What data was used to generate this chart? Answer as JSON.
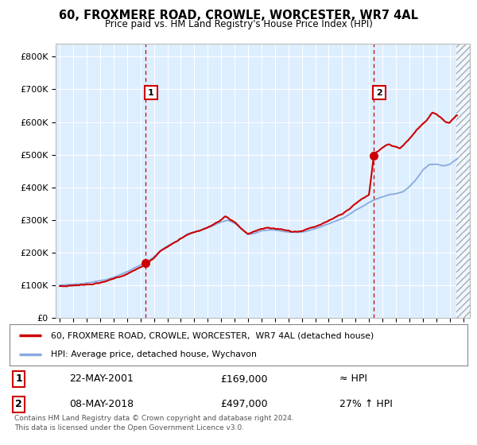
{
  "title": "60, FROXMERE ROAD, CROWLE, WORCESTER, WR7 4AL",
  "subtitle": "Price paid vs. HM Land Registry's House Price Index (HPI)",
  "ylabel_ticks": [
    "£0",
    "£100K",
    "£200K",
    "£300K",
    "£400K",
    "£500K",
    "£600K",
    "£700K",
    "£800K"
  ],
  "ytick_values": [
    0,
    100000,
    200000,
    300000,
    400000,
    500000,
    600000,
    700000,
    800000
  ],
  "ylim": [
    0,
    840000
  ],
  "xlim_start": 1994.7,
  "xlim_end": 2025.5,
  "hatch_start": 2024.5,
  "sale1_x": 2001.38,
  "sale1_y": 169000,
  "sale2_x": 2018.36,
  "sale2_y": 497000,
  "sale1_label": "22-MAY-2001",
  "sale1_price": "£169,000",
  "sale1_rel": "≈ HPI",
  "sale2_label": "08-MAY-2018",
  "sale2_price": "£497,000",
  "sale2_rel": "27% ↑ HPI",
  "legend_line1": "60, FROXMERE ROAD, CROWLE, WORCESTER,  WR7 4AL (detached house)",
  "legend_line2": "HPI: Average price, detached house, Wychavon",
  "footer": "Contains HM Land Registry data © Crown copyright and database right 2024.\nThis data is licensed under the Open Government Licence v3.0.",
  "line_color": "#cc0000",
  "hpi_color": "#88aadd",
  "background_color": "#ddeeff",
  "grid_color": "#ffffff",
  "hpi_points": [
    [
      1995.0,
      97000
    ],
    [
      1995.5,
      98500
    ],
    [
      1996.0,
      100000
    ],
    [
      1996.5,
      101500
    ],
    [
      1997.0,
      105000
    ],
    [
      1997.5,
      108000
    ],
    [
      1998.0,
      112000
    ],
    [
      1998.5,
      116000
    ],
    [
      1999.0,
      122000
    ],
    [
      1999.5,
      130000
    ],
    [
      2000.0,
      138000
    ],
    [
      2000.5,
      148000
    ],
    [
      2001.0,
      158000
    ],
    [
      2001.5,
      168000
    ],
    [
      2002.0,
      185000
    ],
    [
      2002.5,
      205000
    ],
    [
      2003.0,
      218000
    ],
    [
      2003.5,
      228000
    ],
    [
      2004.0,
      240000
    ],
    [
      2004.5,
      255000
    ],
    [
      2005.0,
      262000
    ],
    [
      2005.5,
      268000
    ],
    [
      2006.0,
      275000
    ],
    [
      2006.5,
      283000
    ],
    [
      2007.0,
      292000
    ],
    [
      2007.5,
      298000
    ],
    [
      2008.0,
      288000
    ],
    [
      2008.5,
      272000
    ],
    [
      2009.0,
      255000
    ],
    [
      2009.5,
      258000
    ],
    [
      2010.0,
      265000
    ],
    [
      2010.5,
      268000
    ],
    [
      2011.0,
      268000
    ],
    [
      2011.5,
      265000
    ],
    [
      2012.0,
      263000
    ],
    [
      2012.5,
      262000
    ],
    [
      2013.0,
      263000
    ],
    [
      2013.5,
      268000
    ],
    [
      2014.0,
      275000
    ],
    [
      2014.5,
      283000
    ],
    [
      2015.0,
      290000
    ],
    [
      2015.5,
      298000
    ],
    [
      2016.0,
      308000
    ],
    [
      2016.5,
      320000
    ],
    [
      2017.0,
      333000
    ],
    [
      2017.5,
      345000
    ],
    [
      2018.0,
      358000
    ],
    [
      2018.5,
      368000
    ],
    [
      2019.0,
      375000
    ],
    [
      2019.5,
      382000
    ],
    [
      2020.0,
      385000
    ],
    [
      2020.5,
      392000
    ],
    [
      2021.0,
      408000
    ],
    [
      2021.5,
      430000
    ],
    [
      2022.0,
      460000
    ],
    [
      2022.5,
      478000
    ],
    [
      2023.0,
      478000
    ],
    [
      2023.5,
      472000
    ],
    [
      2024.0,
      475000
    ],
    [
      2024.5,
      490000
    ],
    [
      2025.0,
      498000
    ]
  ],
  "price_points": [
    [
      1995.0,
      97000
    ],
    [
      1995.5,
      98000
    ],
    [
      1996.0,
      100500
    ],
    [
      1996.5,
      102000
    ],
    [
      1997.0,
      106000
    ],
    [
      1997.5,
      109000
    ],
    [
      1998.0,
      112500
    ],
    [
      1998.5,
      117000
    ],
    [
      1999.0,
      123000
    ],
    [
      1999.5,
      131000
    ],
    [
      2000.0,
      139000
    ],
    [
      2000.5,
      149500
    ],
    [
      2001.0,
      159000
    ],
    [
      2001.38,
      169000
    ],
    [
      2001.5,
      172000
    ],
    [
      2002.0,
      188000
    ],
    [
      2002.5,
      210000
    ],
    [
      2003.0,
      222000
    ],
    [
      2003.5,
      235000
    ],
    [
      2004.0,
      248000
    ],
    [
      2004.5,
      262000
    ],
    [
      2005.0,
      268000
    ],
    [
      2005.5,
      272000
    ],
    [
      2006.0,
      280000
    ],
    [
      2006.5,
      290000
    ],
    [
      2007.0,
      300000
    ],
    [
      2007.3,
      308000
    ],
    [
      2007.5,
      305000
    ],
    [
      2007.7,
      298000
    ],
    [
      2008.0,
      290000
    ],
    [
      2008.3,
      278000
    ],
    [
      2008.5,
      268000
    ],
    [
      2009.0,
      252000
    ],
    [
      2009.3,
      255000
    ],
    [
      2009.5,
      260000
    ],
    [
      2010.0,
      268000
    ],
    [
      2010.5,
      272000
    ],
    [
      2011.0,
      270000
    ],
    [
      2011.5,
      268000
    ],
    [
      2012.0,
      265000
    ],
    [
      2012.3,
      262000
    ],
    [
      2012.5,
      263000
    ],
    [
      2013.0,
      265000
    ],
    [
      2013.5,
      272000
    ],
    [
      2014.0,
      280000
    ],
    [
      2014.5,
      290000
    ],
    [
      2015.0,
      298000
    ],
    [
      2015.5,
      308000
    ],
    [
      2016.0,
      318000
    ],
    [
      2016.5,
      332000
    ],
    [
      2017.0,
      348000
    ],
    [
      2017.5,
      362000
    ],
    [
      2018.0,
      375000
    ],
    [
      2018.36,
      497000
    ],
    [
      2018.5,
      505000
    ],
    [
      2018.7,
      510000
    ],
    [
      2019.0,
      520000
    ],
    [
      2019.3,
      528000
    ],
    [
      2019.5,
      530000
    ],
    [
      2019.7,
      525000
    ],
    [
      2020.0,
      522000
    ],
    [
      2020.3,
      518000
    ],
    [
      2020.5,
      525000
    ],
    [
      2020.7,
      535000
    ],
    [
      2021.0,
      548000
    ],
    [
      2021.3,
      562000
    ],
    [
      2021.5,
      572000
    ],
    [
      2021.7,
      580000
    ],
    [
      2022.0,
      592000
    ],
    [
      2022.3,
      605000
    ],
    [
      2022.5,
      618000
    ],
    [
      2022.7,
      630000
    ],
    [
      2023.0,
      625000
    ],
    [
      2023.3,
      615000
    ],
    [
      2023.5,
      608000
    ],
    [
      2023.7,
      600000
    ],
    [
      2024.0,
      598000
    ],
    [
      2024.3,
      610000
    ],
    [
      2024.5,
      618000
    ]
  ]
}
